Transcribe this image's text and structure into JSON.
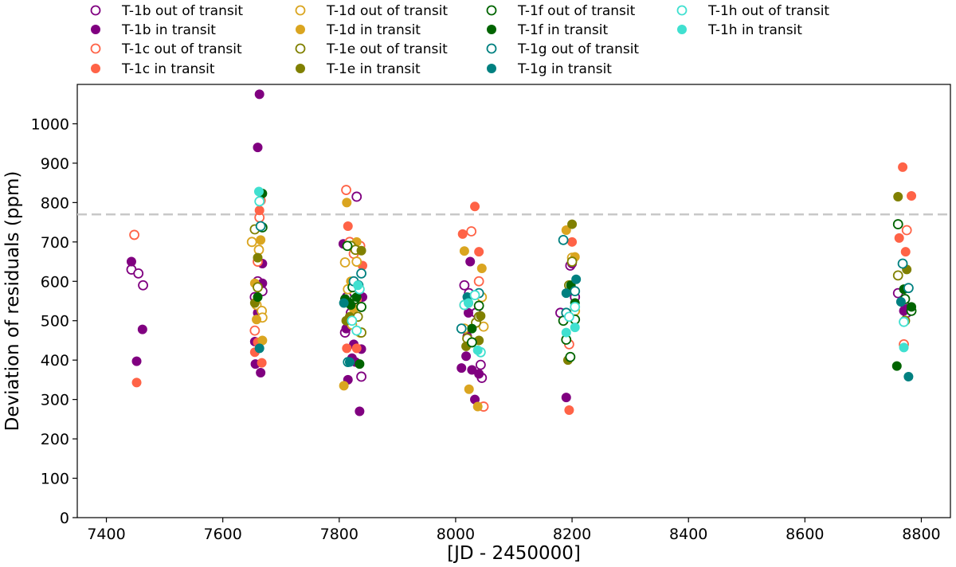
{
  "chart_data": {
    "type": "scatter",
    "title": "",
    "xlabel": "[JD - 2450000]",
    "ylabel": "Deviation of residuals (ppm)",
    "xlim": [
      7350,
      8850
    ],
    "ylim": [
      0,
      1100
    ],
    "x_ticks": [
      7400,
      7600,
      7800,
      8000,
      8200,
      8400,
      8600,
      8800
    ],
    "y_ticks": [
      0,
      100,
      200,
      300,
      400,
      500,
      600,
      700,
      800,
      900,
      1000
    ],
    "threshold_line": 770,
    "legend_position": "top (above plot)",
    "series": [
      {
        "name": "T-1b out of transit",
        "color": "#800080",
        "filled": false,
        "points": [
          [
            7443,
            630
          ],
          [
            7455,
            620
          ],
          [
            7463,
            590
          ],
          [
            7655,
            560
          ],
          [
            7660,
            600
          ],
          [
            7668,
            575
          ],
          [
            7813,
            560
          ],
          [
            7820,
            520
          ],
          [
            7830,
            815
          ],
          [
            7838,
            358
          ],
          [
            7810,
            470
          ],
          [
            8015,
            590
          ],
          [
            8023,
            570
          ],
          [
            8035,
            520
          ],
          [
            8043,
            388
          ],
          [
            8045,
            355
          ],
          [
            8180,
            520
          ],
          [
            8197,
            640
          ],
          [
            8205,
            560
          ],
          [
            8760,
            570
          ],
          [
            8770,
            545
          ],
          [
            8775,
            520
          ]
        ]
      },
      {
        "name": "T-1b in transit",
        "color": "#800080",
        "filled": true,
        "points": [
          [
            7443,
            650
          ],
          [
            7452,
            397
          ],
          [
            7462,
            478
          ],
          [
            7655,
            447
          ],
          [
            7660,
            940
          ],
          [
            7663,
            1075
          ],
          [
            7656,
            390
          ],
          [
            7665,
            368
          ],
          [
            7668,
            595
          ],
          [
            7668,
            645
          ],
          [
            7660,
            520
          ],
          [
            7807,
            695
          ],
          [
            7810,
            555
          ],
          [
            7812,
            480
          ],
          [
            7815,
            350
          ],
          [
            7822,
            405
          ],
          [
            7825,
            440
          ],
          [
            7828,
            395
          ],
          [
            7832,
            510
          ],
          [
            7835,
            270
          ],
          [
            7838,
            428
          ],
          [
            7840,
            560
          ],
          [
            8010,
            380
          ],
          [
            8018,
            410
          ],
          [
            8020,
            460
          ],
          [
            8022,
            520
          ],
          [
            8025,
            650
          ],
          [
            8028,
            375
          ],
          [
            8033,
            300
          ],
          [
            8040,
            365
          ],
          [
            8190,
            305
          ],
          [
            8200,
            645
          ],
          [
            8770,
            525
          ],
          [
            8775,
            530
          ]
        ]
      },
      {
        "name": "T-1c out of transit",
        "color": "#FF6347",
        "filled": false,
        "points": [
          [
            7448,
            718
          ],
          [
            7655,
            475
          ],
          [
            7660,
            650
          ],
          [
            7663,
            762
          ],
          [
            7665,
            805
          ],
          [
            7812,
            832
          ],
          [
            7818,
            700
          ],
          [
            7825,
            670
          ],
          [
            7830,
            555
          ],
          [
            7836,
            690
          ],
          [
            8015,
            540
          ],
          [
            8027,
            727
          ],
          [
            8040,
            600
          ],
          [
            8048,
            282
          ],
          [
            8195,
            440
          ],
          [
            8770,
            440
          ],
          [
            8775,
            730
          ]
        ]
      },
      {
        "name": "T-1c in transit",
        "color": "#FF6347",
        "filled": true,
        "points": [
          [
            7452,
            343
          ],
          [
            7655,
            420
          ],
          [
            7660,
            445
          ],
          [
            7663,
            780
          ],
          [
            7667,
            393
          ],
          [
            7813,
            430
          ],
          [
            7815,
            740
          ],
          [
            7822,
            545
          ],
          [
            7830,
            430
          ],
          [
            7840,
            640
          ],
          [
            8012,
            720
          ],
          [
            8033,
            790
          ],
          [
            8040,
            675
          ],
          [
            8195,
            273
          ],
          [
            8200,
            700
          ],
          [
            8762,
            710
          ],
          [
            8768,
            890
          ],
          [
            8773,
            675
          ],
          [
            8783,
            817
          ]
        ]
      },
      {
        "name": "T-1d out of transit",
        "color": "#DAA520",
        "filled": false,
        "points": [
          [
            7650,
            700
          ],
          [
            7658,
            540
          ],
          [
            7662,
            680
          ],
          [
            7667,
            525
          ],
          [
            7668,
            508
          ],
          [
            7810,
            648
          ],
          [
            7815,
            580
          ],
          [
            7822,
            490
          ],
          [
            7830,
            650
          ],
          [
            7836,
            470
          ],
          [
            8015,
            480
          ],
          [
            8025,
            445
          ],
          [
            8045,
            560
          ],
          [
            8048,
            485
          ],
          [
            8200,
            660
          ],
          [
            8205,
            525
          ]
        ]
      },
      {
        "name": "T-1d in transit",
        "color": "#DAA520",
        "filled": true,
        "points": [
          [
            7655,
            595
          ],
          [
            7658,
            503
          ],
          [
            7665,
            705
          ],
          [
            7668,
            450
          ],
          [
            7808,
            335
          ],
          [
            7813,
            800
          ],
          [
            7820,
            600
          ],
          [
            7825,
            530
          ],
          [
            7830,
            700
          ],
          [
            8015,
            677
          ],
          [
            8023,
            326
          ],
          [
            8038,
            282
          ],
          [
            8045,
            633
          ],
          [
            8190,
            730
          ],
          [
            8205,
            662
          ]
        ]
      },
      {
        "name": "T-1e out of transit",
        "color": "#808000",
        "filled": false,
        "points": [
          [
            7655,
            732
          ],
          [
            7660,
            585
          ],
          [
            7820,
            690
          ],
          [
            7828,
            680
          ],
          [
            7832,
            510
          ],
          [
            7838,
            470
          ],
          [
            8020,
            455
          ],
          [
            8035,
            495
          ],
          [
            8040,
            510
          ],
          [
            8195,
            590
          ],
          [
            8200,
            650
          ],
          [
            8760,
            615
          ],
          [
            8772,
            500
          ]
        ]
      },
      {
        "name": "T-1e in transit",
        "color": "#808000",
        "filled": true,
        "points": [
          [
            7655,
            545
          ],
          [
            7660,
            660
          ],
          [
            7812,
            500
          ],
          [
            7818,
            510
          ],
          [
            7828,
            555
          ],
          [
            7838,
            678
          ],
          [
            8018,
            435
          ],
          [
            8040,
            450
          ],
          [
            8043,
            512
          ],
          [
            8193,
            400
          ],
          [
            8200,
            745
          ],
          [
            8760,
            815
          ],
          [
            8775,
            630
          ]
        ]
      },
      {
        "name": "T-1f out of transit",
        "color": "#006400",
        "filled": false,
        "points": [
          [
            7668,
            737
          ],
          [
            7814,
            690
          ],
          [
            7823,
            585
          ],
          [
            7827,
            555
          ],
          [
            7838,
            535
          ],
          [
            8028,
            445
          ],
          [
            8040,
            538
          ],
          [
            8185,
            500
          ],
          [
            8190,
            452
          ],
          [
            8197,
            408
          ],
          [
            8205,
            503
          ],
          [
            8760,
            745
          ],
          [
            8772,
            555
          ],
          [
            8783,
            525
          ]
        ]
      },
      {
        "name": "T-1f in transit",
        "color": "#006400",
        "filled": true,
        "points": [
          [
            7660,
            560
          ],
          [
            7668,
            823
          ],
          [
            7810,
            555
          ],
          [
            7818,
            545
          ],
          [
            7820,
            540
          ],
          [
            7830,
            560
          ],
          [
            7835,
            390
          ],
          [
            8022,
            545
          ],
          [
            8028,
            480
          ],
          [
            8198,
            590
          ],
          [
            8205,
            545
          ],
          [
            8758,
            385
          ],
          [
            8770,
            580
          ],
          [
            8783,
            535
          ]
        ]
      },
      {
        "name": "T-1g out of transit",
        "color": "#008080",
        "filled": false,
        "points": [
          [
            7665,
            740
          ],
          [
            7815,
            395
          ],
          [
            7825,
            600
          ],
          [
            7833,
            590
          ],
          [
            7838,
            620
          ],
          [
            8010,
            480
          ],
          [
            8040,
            570
          ],
          [
            8185,
            705
          ],
          [
            8190,
            520
          ],
          [
            8205,
            575
          ],
          [
            8768,
            645
          ],
          [
            8778,
            583
          ]
        ]
      },
      {
        "name": "T-1g in transit",
        "color": "#008080",
        "filled": true,
        "points": [
          [
            7663,
            430
          ],
          [
            7808,
            545
          ],
          [
            7818,
            395
          ],
          [
            8020,
            560
          ],
          [
            8190,
            570
          ],
          [
            8207,
            605
          ],
          [
            8765,
            548
          ],
          [
            8778,
            358
          ]
        ]
      },
      {
        "name": "T-1h out of transit",
        "color": "#40E0D0",
        "filled": false,
        "points": [
          [
            7663,
            803
          ],
          [
            7822,
            500
          ],
          [
            7830,
            475
          ],
          [
            7835,
            580
          ],
          [
            8015,
            540
          ],
          [
            8033,
            565
          ],
          [
            8043,
            420
          ],
          [
            8195,
            510
          ],
          [
            8205,
            535
          ],
          [
            8770,
            497
          ]
        ]
      },
      {
        "name": "T-1h in transit",
        "color": "#40E0D0",
        "filled": true,
        "points": [
          [
            7662,
            828
          ],
          [
            7832,
            590
          ],
          [
            8022,
            545
          ],
          [
            8038,
            425
          ],
          [
            8190,
            470
          ],
          [
            8205,
            483
          ],
          [
            8770,
            432
          ]
        ]
      }
    ]
  }
}
